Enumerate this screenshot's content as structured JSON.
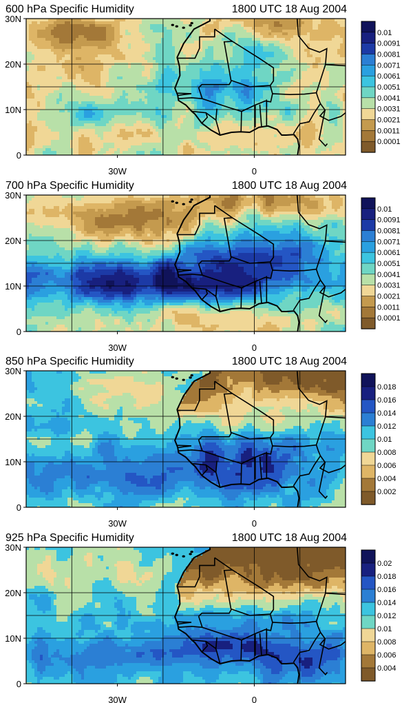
{
  "figure": {
    "panels": [
      {
        "title_left": "600 hPa Specific Humidity",
        "title_right": "1800 UTC 18 Aug 2004",
        "colorbar_labels": [
          "0.01",
          "0.0091",
          "0.0081",
          "0.0071",
          "0.0061",
          "0.0051",
          "0.0041",
          "0.0031",
          "0.0021",
          "0.0011",
          "0.0001"
        ]
      },
      {
        "title_left": "700 hPa Specific Humidity",
        "title_right": "1800 UTC 18 Aug 2004",
        "colorbar_labels": [
          "0.01",
          "0.0091",
          "0.0081",
          "0.0071",
          "0.0061",
          "0.0051",
          "0.0041",
          "0.0031",
          "0.0021",
          "0.0011",
          "0.0001"
        ]
      },
      {
        "title_left": "850 hPa Specific Humidity",
        "title_right": "1800 UTC 18 Aug 2004",
        "colorbar_labels": [
          "0.018",
          "0.016",
          "0.014",
          "0.012",
          "0.01",
          "0.008",
          "0.006",
          "0.004",
          "0.002"
        ]
      },
      {
        "title_left": "925 hPa Specific Humidity",
        "title_right": "1800 UTC 18 Aug 2004",
        "colorbar_labels": [
          "0.02",
          "0.018",
          "0.016",
          "0.014",
          "0.012",
          "0.01",
          "0.008",
          "0.006",
          "0.004"
        ]
      }
    ]
  },
  "chart_data": [
    {
      "type": "heatmap",
      "title": "600 hPa Specific Humidity",
      "subtitle": "1800 UTC 18 Aug 2004",
      "y_ticks": [
        "30N",
        "20N",
        "10N",
        "0"
      ],
      "x_ticks": [
        "30W",
        "0"
      ],
      "xlim_deg_east": [
        -50,
        20
      ],
      "ylim_deg_north": [
        0,
        30
      ],
      "grid": true,
      "colorbar_levels": [
        0.0001,
        0.0011,
        0.0021,
        0.0031,
        0.0041,
        0.0051,
        0.0061,
        0.0071,
        0.0081,
        0.0091,
        0.01
      ],
      "colors": [
        "#7f5a2a",
        "#a37838",
        "#c49a4e",
        "#deb566",
        "#f0d796",
        "#b8e0a8",
        "#6fd6c4",
        "#3cc4e0",
        "#2aa0e0",
        "#2b7fd4",
        "#2456c4",
        "#1c3aa6",
        "#18207f",
        "#10135a"
      ]
    },
    {
      "type": "heatmap",
      "title": "700 hPa Specific Humidity",
      "subtitle": "1800 UTC 18 Aug 2004",
      "y_ticks": [
        "30N",
        "20N",
        "10N",
        "0"
      ],
      "x_ticks": [
        "30W",
        "0"
      ],
      "xlim_deg_east": [
        -50,
        20
      ],
      "ylim_deg_north": [
        0,
        30
      ],
      "grid": true,
      "colorbar_levels": [
        0.0001,
        0.0011,
        0.0021,
        0.0031,
        0.0041,
        0.0051,
        0.0061,
        0.0071,
        0.0081,
        0.0091,
        0.01
      ]
    },
    {
      "type": "heatmap",
      "title": "850 hPa Specific Humidity",
      "subtitle": "1800 UTC 18 Aug 2004",
      "y_ticks": [
        "30N",
        "20N",
        "10N",
        "0"
      ],
      "x_ticks": [
        "30W",
        "0"
      ],
      "xlim_deg_east": [
        -50,
        20
      ],
      "ylim_deg_north": [
        0,
        30
      ],
      "grid": true,
      "colorbar_levels": [
        0.002,
        0.004,
        0.006,
        0.008,
        0.01,
        0.012,
        0.014,
        0.016,
        0.018
      ]
    },
    {
      "type": "heatmap",
      "title": "925 hPa Specific Humidity",
      "subtitle": "1800 UTC 18 Aug 2004",
      "y_ticks": [
        "30N",
        "20N",
        "10N",
        "0"
      ],
      "x_ticks": [
        "30W",
        "0"
      ],
      "xlim_deg_east": [
        -50,
        20
      ],
      "ylim_deg_north": [
        0,
        30
      ],
      "grid": true,
      "colorbar_levels": [
        0.004,
        0.006,
        0.008,
        0.01,
        0.012,
        0.014,
        0.016,
        0.018,
        0.02
      ]
    }
  ]
}
